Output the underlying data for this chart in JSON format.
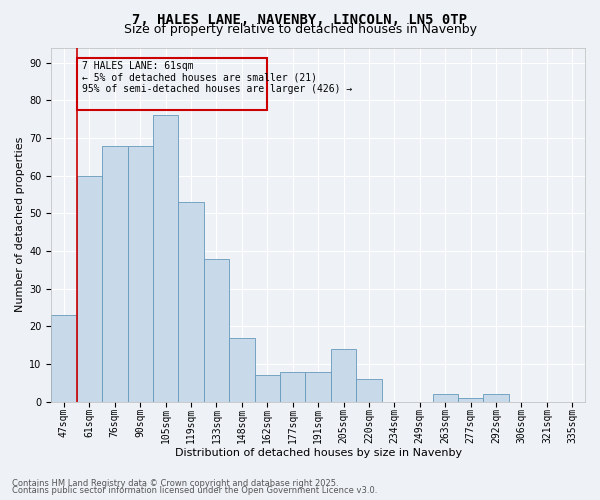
{
  "title1": "7, HALES LANE, NAVENBY, LINCOLN, LN5 0TP",
  "title2": "Size of property relative to detached houses in Navenby",
  "xlabel": "Distribution of detached houses by size in Navenby",
  "ylabel": "Number of detached properties",
  "categories": [
    "47sqm",
    "61sqm",
    "76sqm",
    "90sqm",
    "105sqm",
    "119sqm",
    "133sqm",
    "148sqm",
    "162sqm",
    "177sqm",
    "191sqm",
    "205sqm",
    "220sqm",
    "234sqm",
    "249sqm",
    "263sqm",
    "277sqm",
    "292sqm",
    "306sqm",
    "321sqm",
    "335sqm"
  ],
  "values": [
    23,
    60,
    68,
    68,
    76,
    53,
    38,
    17,
    7,
    8,
    8,
    14,
    6,
    0,
    0,
    2,
    1,
    2,
    0,
    0,
    0
  ],
  "highlight_index": 1,
  "bar_color": "#c8daea",
  "bar_edge_color": "#6699bb",
  "highlight_line_color": "#cc0000",
  "annotation_box_color": "#cc0000",
  "annotation_text": "7 HALES LANE: 61sqm\n← 5% of detached houses are smaller (21)\n95% of semi-detached houses are larger (426) →",
  "footer1": "Contains HM Land Registry data © Crown copyright and database right 2025.",
  "footer2": "Contains public sector information licensed under the Open Government Licence v3.0.",
  "ylim": [
    0,
    94
  ],
  "yticks": [
    0,
    10,
    20,
    30,
    40,
    50,
    60,
    70,
    80,
    90
  ],
  "background_color": "#eef2f7",
  "grid_color": "#ffffff",
  "title_fontsize": 10,
  "subtitle_fontsize": 9,
  "axis_label_fontsize": 8,
  "tick_fontsize": 7,
  "annotation_fontsize": 7
}
